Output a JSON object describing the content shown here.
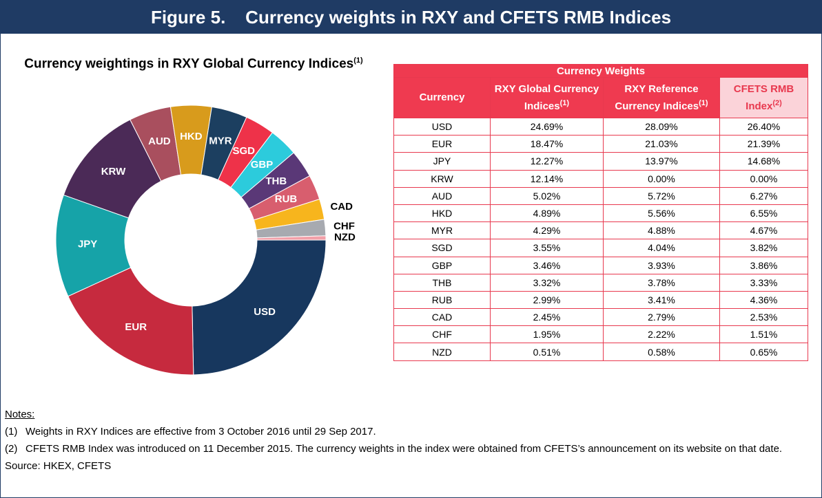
{
  "header": {
    "title": "Figure 5.    Currency weights in RXY and CFETS RMB Indices"
  },
  "chart_data": {
    "type": "donut",
    "title": "Currency weightings in RXY Global Currency Indices",
    "title_note": "(1)",
    "categories": [
      "USD",
      "EUR",
      "JPY",
      "KRW",
      "AUD",
      "HKD",
      "MYR",
      "SGD",
      "GBP",
      "THB",
      "RUB",
      "CAD",
      "CHF",
      "NZD"
    ],
    "values": [
      24.69,
      18.47,
      12.27,
      12.14,
      5.02,
      4.89,
      4.29,
      3.55,
      3.46,
      3.32,
      2.99,
      2.45,
      1.95,
      0.51
    ],
    "colors": [
      "#17375e",
      "#c62a3e",
      "#16a3a8",
      "#4b2a57",
      "#a94f5e",
      "#d89b1c",
      "#1c3f60",
      "#ee3249",
      "#2ccbdc",
      "#5a3877",
      "#d85e6e",
      "#f7b51d",
      "#a7aab0",
      "#f2a0a9"
    ]
  },
  "table": {
    "group_header": "Currency Weights",
    "columns": [
      {
        "text": "Currency",
        "note": null
      },
      {
        "text": "RXY Global Currency Indices",
        "note": "(1)"
      },
      {
        "text": "RXY Reference Currency Indices",
        "note": "(1)"
      },
      {
        "text": "CFETS RMB Index",
        "note": "(2)"
      }
    ],
    "rows": [
      [
        "USD",
        "24.69%",
        "28.09%",
        "26.40%"
      ],
      [
        "EUR",
        "18.47%",
        "21.03%",
        "21.39%"
      ],
      [
        "JPY",
        "12.27%",
        "13.97%",
        "14.68%"
      ],
      [
        "KRW",
        "12.14%",
        "0.00%",
        "0.00%"
      ],
      [
        "AUD",
        "5.02%",
        "5.72%",
        "6.27%"
      ],
      [
        "HKD",
        "4.89%",
        "5.56%",
        "6.55%"
      ],
      [
        "MYR",
        "4.29%",
        "4.88%",
        "4.67%"
      ],
      [
        "SGD",
        "3.55%",
        "4.04%",
        "3.82%"
      ],
      [
        "GBP",
        "3.46%",
        "3.93%",
        "3.86%"
      ],
      [
        "THB",
        "3.32%",
        "3.78%",
        "3.33%"
      ],
      [
        "RUB",
        "2.99%",
        "3.41%",
        "4.36%"
      ],
      [
        "CAD",
        "2.45%",
        "2.79%",
        "2.53%"
      ],
      [
        "CHF",
        "1.95%",
        "2.22%",
        "1.51%"
      ],
      [
        "NZD",
        "0.51%",
        "0.58%",
        "0.65%"
      ]
    ]
  },
  "notes": {
    "heading": "Notes:",
    "items": [
      {
        "marker": "(1)",
        "text": "Weights in RXY Indices are effective from 3 October 2016 until 29 Sep 2017."
      },
      {
        "marker": "(2)",
        "text": "CFETS RMB Index was introduced on 11 December 2015.  The currency weights in the index were obtained from CFETS’s announcement on its website on that date."
      }
    ],
    "source": "Source: HKEX, CFETS"
  }
}
